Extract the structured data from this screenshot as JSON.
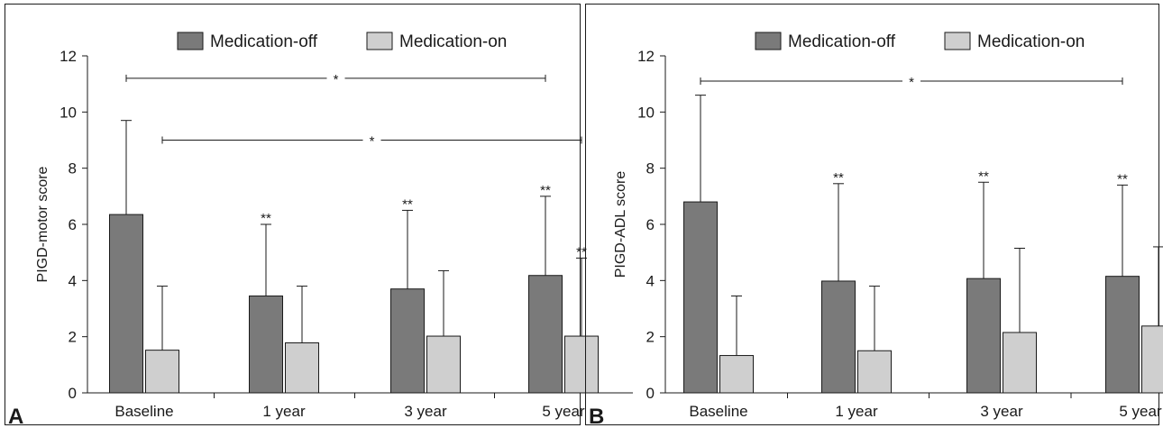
{
  "colors": {
    "medication_off": "#7a7a7a",
    "medication_on": "#cfcfcf",
    "ink": "#1a1a1a"
  },
  "chart_data": [
    {
      "panel_label": "A",
      "type": "bar",
      "ylabel": "PIGD-motor score",
      "xlabel": "",
      "ylim": [
        0,
        12
      ],
      "yticks": [
        0,
        2,
        4,
        6,
        8,
        10,
        12
      ],
      "legend_position": "top-center",
      "categories": [
        "Baseline",
        "1 year",
        "3 year",
        "5 year"
      ],
      "series": [
        {
          "name": "Medication-off",
          "values": [
            6.35,
            3.45,
            3.7,
            4.18
          ],
          "error_upper": [
            9.7,
            6.0,
            6.5,
            7.0
          ],
          "marks": [
            "",
            "**",
            "**",
            "**"
          ]
        },
        {
          "name": "Medication-on",
          "values": [
            1.52,
            1.78,
            2.02,
            2.02
          ],
          "error_upper": [
            3.8,
            3.8,
            4.35,
            4.8
          ],
          "marks": [
            "",
            "",
            "",
            "**"
          ]
        }
      ],
      "significance": [
        {
          "from": [
            0,
            0
          ],
          "to": [
            3,
            0
          ],
          "y": 11.2,
          "label": "*"
        },
        {
          "from": [
            0,
            1
          ],
          "to": [
            3,
            1
          ],
          "y": 9.0,
          "label": "*"
        }
      ]
    },
    {
      "panel_label": "B",
      "type": "bar",
      "ylabel": "PIGD-ADL score",
      "xlabel": "",
      "ylim": [
        0,
        12
      ],
      "yticks": [
        0,
        2,
        4,
        6,
        8,
        10,
        12
      ],
      "legend_position": "top-center",
      "categories": [
        "Baseline",
        "1 year",
        "3 year",
        "5 year"
      ],
      "series": [
        {
          "name": "Medication-off",
          "values": [
            6.8,
            3.98,
            4.07,
            4.15
          ],
          "error_upper": [
            10.6,
            7.45,
            7.5,
            7.4
          ],
          "marks": [
            "",
            "**",
            "**",
            "**"
          ]
        },
        {
          "name": "Medication-on",
          "values": [
            1.33,
            1.5,
            2.15,
            2.38
          ],
          "error_upper": [
            3.45,
            3.8,
            5.15,
            5.2
          ],
          "marks": [
            "",
            "",
            "",
            ""
          ]
        }
      ],
      "significance": [
        {
          "from": [
            0,
            0
          ],
          "to": [
            3,
            0
          ],
          "y": 11.1,
          "label": "*"
        }
      ]
    }
  ]
}
